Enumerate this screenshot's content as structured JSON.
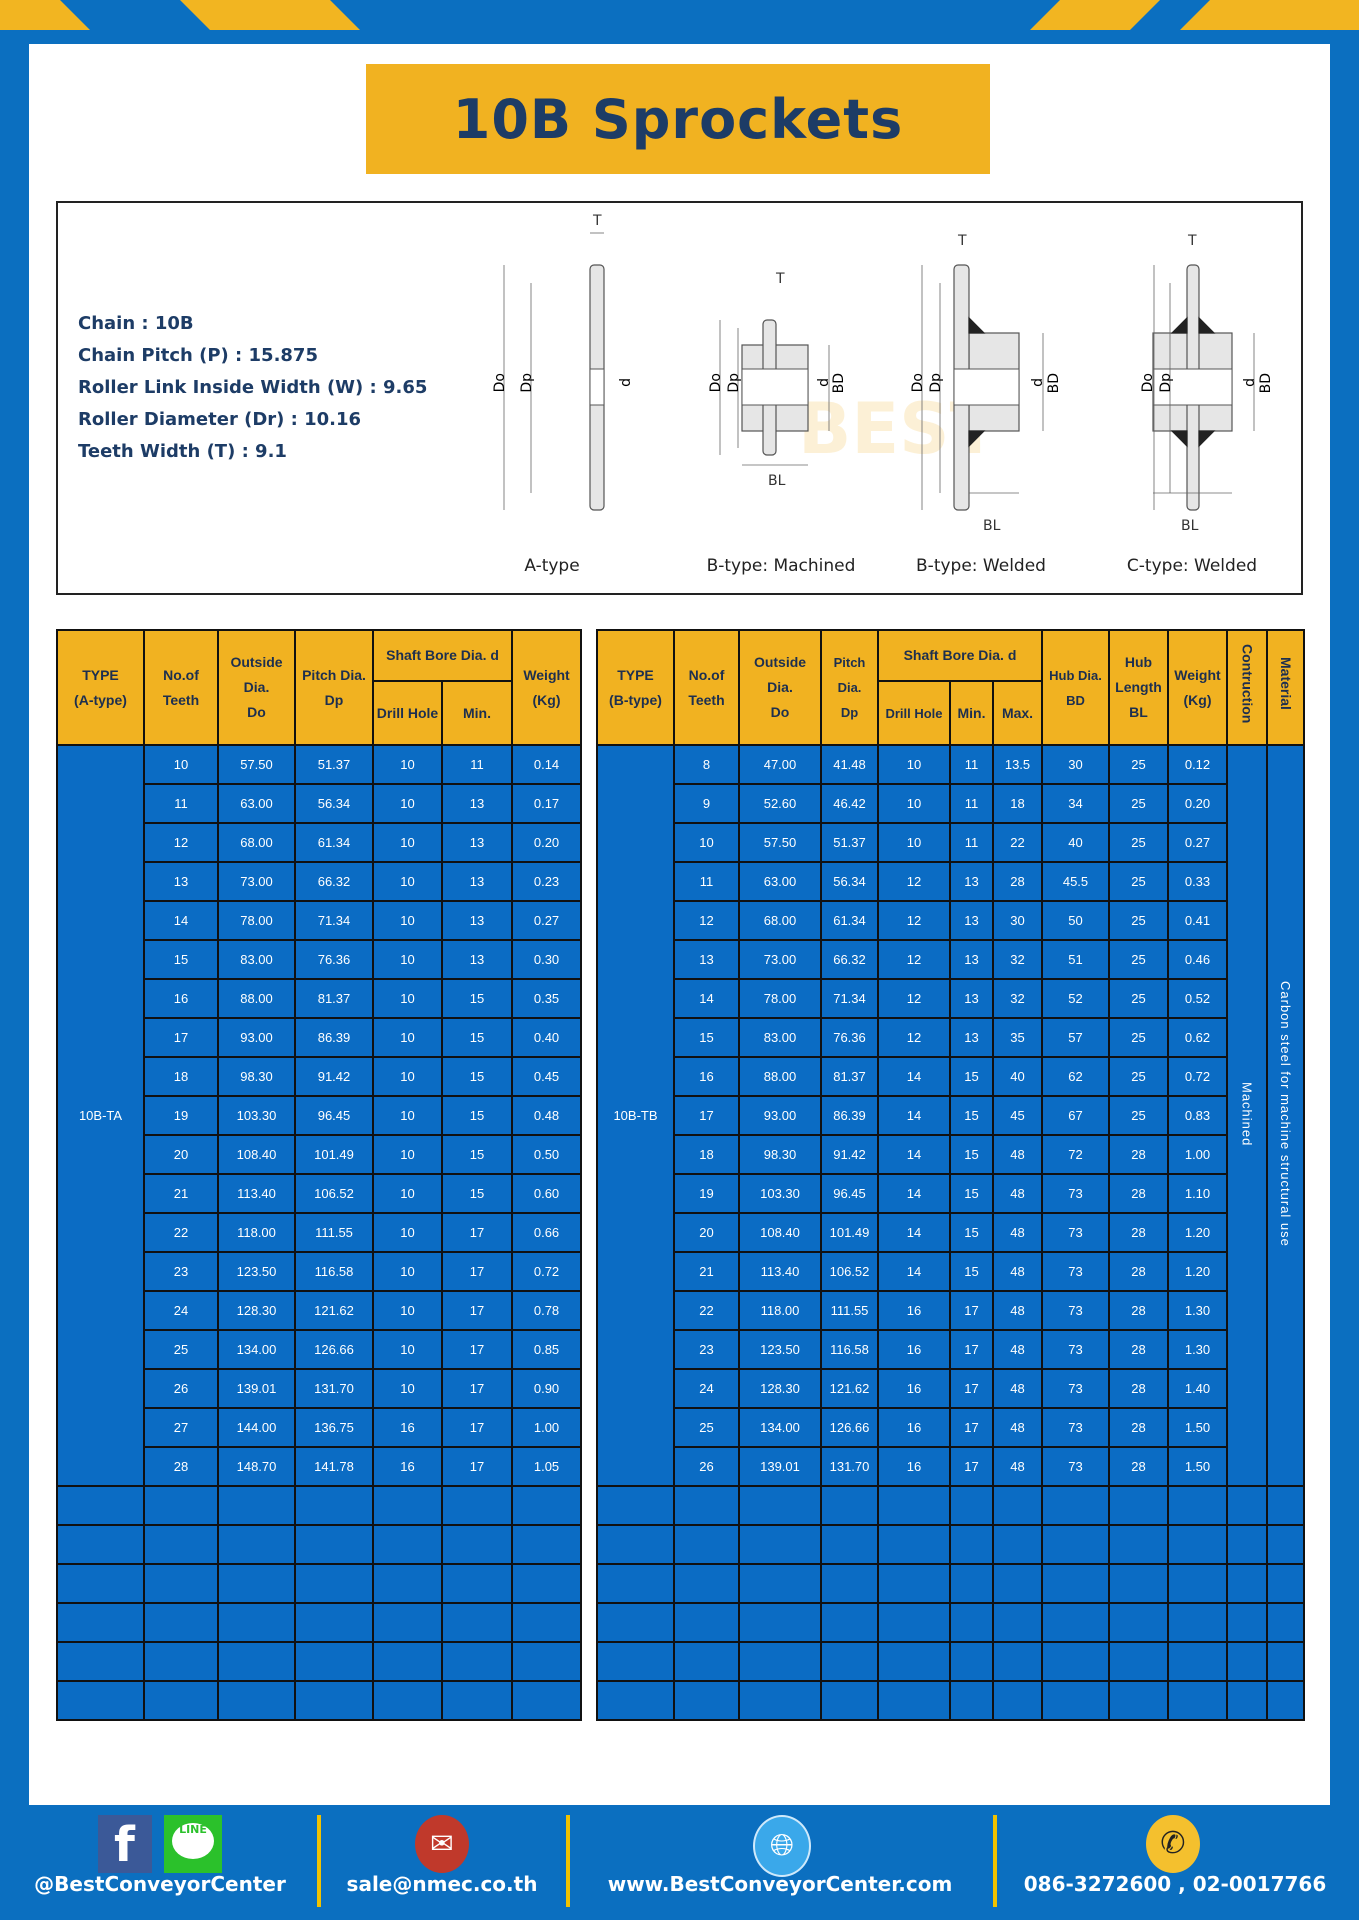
{
  "title": "10B Sprockets",
  "specs": [
    "Chain  :  10B",
    "Chain Pitch (P)  :  15.875",
    "Roller Link Inside Width (W) : 9.65",
    "Roller Diameter (Dr) : 10.16",
    "Teeth Width (T)  :  9.1"
  ],
  "diagram": {
    "captions": [
      "A-type",
      "B-type: Machined",
      "B-type: Welded",
      "C-type: Welded"
    ],
    "dims": {
      "T": "T",
      "Do": "Do",
      "Dp": "Dp",
      "d": "d",
      "BD": "BD",
      "BL": "BL"
    },
    "watermark": "BEST CONVEYOR CENTER"
  },
  "table_a": {
    "headers": {
      "type": [
        "TYPE",
        "(A-type)"
      ],
      "teeth": [
        "No.of",
        "Teeth"
      ],
      "outside": [
        "Outside",
        "Dia.",
        "Do"
      ],
      "pitch": [
        "Pitch Dia.",
        "Dp"
      ],
      "bore": "Shaft Bore Dia. d",
      "drill": "Drill Hole",
      "min": "Min.",
      "weight": [
        "Weight",
        "(Kg)"
      ]
    },
    "type_value": "10B-TA",
    "rows": [
      [
        "10",
        "57.50",
        "51.37",
        "10",
        "11",
        "0.14"
      ],
      [
        "11",
        "63.00",
        "56.34",
        "10",
        "13",
        "0.17"
      ],
      [
        "12",
        "68.00",
        "61.34",
        "10",
        "13",
        "0.20"
      ],
      [
        "13",
        "73.00",
        "66.32",
        "10",
        "13",
        "0.23"
      ],
      [
        "14",
        "78.00",
        "71.34",
        "10",
        "13",
        "0.27"
      ],
      [
        "15",
        "83.00",
        "76.36",
        "10",
        "13",
        "0.30"
      ],
      [
        "16",
        "88.00",
        "81.37",
        "10",
        "15",
        "0.35"
      ],
      [
        "17",
        "93.00",
        "86.39",
        "10",
        "15",
        "0.40"
      ],
      [
        "18",
        "98.30",
        "91.42",
        "10",
        "15",
        "0.45"
      ],
      [
        "19",
        "103.30",
        "96.45",
        "10",
        "15",
        "0.48"
      ],
      [
        "20",
        "108.40",
        "101.49",
        "10",
        "15",
        "0.50"
      ],
      [
        "21",
        "113.40",
        "106.52",
        "10",
        "15",
        "0.60"
      ],
      [
        "22",
        "118.00",
        "111.55",
        "10",
        "17",
        "0.66"
      ],
      [
        "23",
        "123.50",
        "116.58",
        "10",
        "17",
        "0.72"
      ],
      [
        "24",
        "128.30",
        "121.62",
        "10",
        "17",
        "0.78"
      ],
      [
        "25",
        "134.00",
        "126.66",
        "10",
        "17",
        "0.85"
      ],
      [
        "26",
        "139.01",
        "131.70",
        "10",
        "17",
        "0.90"
      ],
      [
        "27",
        "144.00",
        "136.75",
        "16",
        "17",
        "1.00"
      ],
      [
        "28",
        "148.70",
        "141.78",
        "16",
        "17",
        "1.05"
      ]
    ]
  },
  "table_b": {
    "headers": {
      "type": [
        "TYPE",
        "(B-type)"
      ],
      "teeth": [
        "No.of",
        "Teeth"
      ],
      "outside": [
        "Outside",
        "Dia.",
        "Do"
      ],
      "pitch": [
        "Pitch Dia.",
        "Dp"
      ],
      "bore": "Shaft Bore Dia. d",
      "drill": "Drill Hole",
      "min": "Min.",
      "max": "Max.",
      "hub_dia": [
        "Hub Dia.",
        "BD"
      ],
      "hub_len": [
        "Hub",
        "Length",
        "BL"
      ],
      "weight": [
        "Weight",
        "(Kg)"
      ],
      "construction": "Contruction",
      "material": "Material"
    },
    "type_value": "10B-TB",
    "construction_value": "Machined",
    "material_value": "Carbon steel  for machine structural use",
    "rows": [
      [
        "8",
        "47.00",
        "41.48",
        "10",
        "11",
        "13.5",
        "30",
        "25",
        "0.12"
      ],
      [
        "9",
        "52.60",
        "46.42",
        "10",
        "11",
        "18",
        "34",
        "25",
        "0.20"
      ],
      [
        "10",
        "57.50",
        "51.37",
        "10",
        "11",
        "22",
        "40",
        "25",
        "0.27"
      ],
      [
        "11",
        "63.00",
        "56.34",
        "12",
        "13",
        "28",
        "45.5",
        "25",
        "0.33"
      ],
      [
        "12",
        "68.00",
        "61.34",
        "12",
        "13",
        "30",
        "50",
        "25",
        "0.41"
      ],
      [
        "13",
        "73.00",
        "66.32",
        "12",
        "13",
        "32",
        "51",
        "25",
        "0.46"
      ],
      [
        "14",
        "78.00",
        "71.34",
        "12",
        "13",
        "32",
        "52",
        "25",
        "0.52"
      ],
      [
        "15",
        "83.00",
        "76.36",
        "12",
        "13",
        "35",
        "57",
        "25",
        "0.62"
      ],
      [
        "16",
        "88.00",
        "81.37",
        "14",
        "15",
        "40",
        "62",
        "25",
        "0.72"
      ],
      [
        "17",
        "93.00",
        "86.39",
        "14",
        "15",
        "45",
        "67",
        "25",
        "0.83"
      ],
      [
        "18",
        "98.30",
        "91.42",
        "14",
        "15",
        "48",
        "72",
        "28",
        "1.00"
      ],
      [
        "19",
        "103.30",
        "96.45",
        "14",
        "15",
        "48",
        "73",
        "28",
        "1.10"
      ],
      [
        "20",
        "108.40",
        "101.49",
        "14",
        "15",
        "48",
        "73",
        "28",
        "1.20"
      ],
      [
        "21",
        "113.40",
        "106.52",
        "14",
        "15",
        "48",
        "73",
        "28",
        "1.20"
      ],
      [
        "22",
        "118.00",
        "111.55",
        "16",
        "17",
        "48",
        "73",
        "28",
        "1.30"
      ],
      [
        "23",
        "123.50",
        "116.58",
        "16",
        "17",
        "48",
        "73",
        "28",
        "1.30"
      ],
      [
        "24",
        "128.30",
        "121.62",
        "16",
        "17",
        "48",
        "73",
        "28",
        "1.40"
      ],
      [
        "25",
        "134.00",
        "126.66",
        "16",
        "17",
        "48",
        "73",
        "28",
        "1.50"
      ],
      [
        "26",
        "139.01",
        "131.70",
        "16",
        "17",
        "48",
        "73",
        "28",
        "1.50"
      ]
    ]
  },
  "footer": {
    "social": "@BestConveyorCenter",
    "line_label": "LINE",
    "email": "sale@nmec.co.th",
    "website": "www.BestConveyorCenter.com",
    "phone": "086-3272600 , 02-0017766"
  },
  "colors": {
    "background": "#0b6fc0",
    "accent": "#f1b221",
    "title_text": "#1d3c66",
    "cell": "#0b6cc4"
  }
}
